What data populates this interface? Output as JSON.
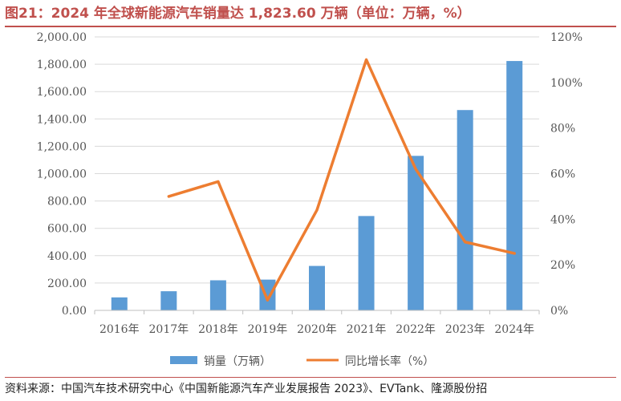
{
  "header": {
    "title": "图21：2024 年全球新能源汽车销量达 1,823.60 万辆（单位：万辆，%）",
    "accent_color": "#c0504d"
  },
  "footer": {
    "source": "资料来源：中国汽车技术研究中心《中国新能源汽车产业发展报告 2023》、EVTank、隆源股份招"
  },
  "chart_data": {
    "type": "bar",
    "categories": [
      "2016年",
      "2017年",
      "2018年",
      "2019年",
      "2020年",
      "2021年",
      "2022年",
      "2023年",
      "2024年"
    ],
    "series": [
      {
        "name": "销量（万辆）",
        "type": "bar",
        "axis": "left",
        "color": "#5b9bd5",
        "values": [
          95,
          140,
          220,
          225,
          325,
          690,
          1130,
          1465,
          1823.6
        ]
      },
      {
        "name": "同比增长率（%）",
        "type": "line",
        "axis": "right",
        "color": "#ed7d31",
        "values": [
          null,
          50,
          56.5,
          4.5,
          44,
          110,
          62,
          30,
          25
        ]
      }
    ],
    "y_left": {
      "min": 0,
      "max": 2000,
      "step": 200,
      "tick_labels": [
        "0.00",
        "200.00",
        "400.00",
        "600.00",
        "800.00",
        "1,000.00",
        "1,200.00",
        "1,400.00",
        "1,600.00",
        "1,800.00",
        "2,000.00"
      ]
    },
    "y_right": {
      "min": 0,
      "max": 120,
      "step": 20,
      "tick_labels": [
        "0%",
        "20%",
        "40%",
        "60%",
        "80%",
        "100%",
        "120%"
      ]
    },
    "grid": true,
    "legend_position": "bottom"
  }
}
